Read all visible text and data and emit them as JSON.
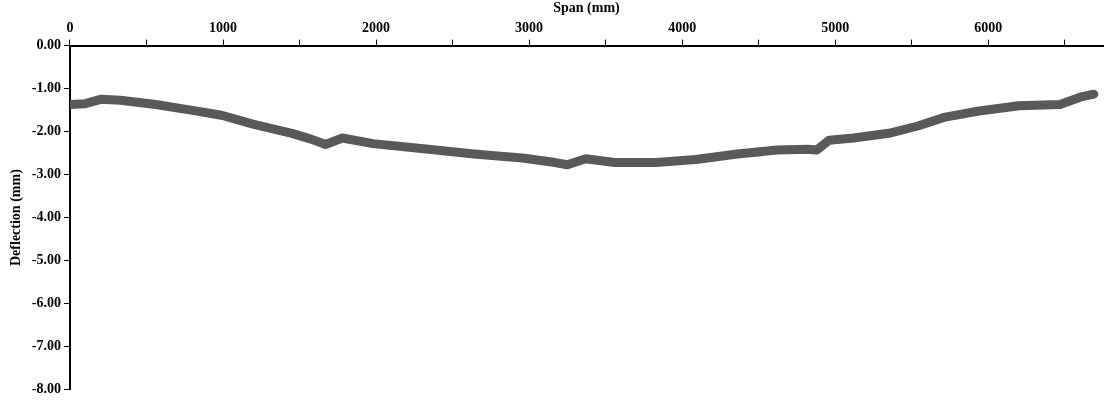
{
  "chart_data": {
    "type": "line",
    "xlabel": "Span (mm)",
    "ylabel": "Deflection (mm)",
    "grid": false,
    "legend": false,
    "marker": "none",
    "line_style": "solid",
    "xlim": [
      0,
      6750
    ],
    "xticks": [
      0,
      {
        "value": 500,
        "label": null
      },
      1000,
      {
        "value": 1500,
        "label": null
      },
      2000,
      {
        "value": 2500,
        "label": null
      },
      3000,
      {
        "value": 3500,
        "label": null
      },
      4000,
      {
        "value": 4500,
        "label": null
      },
      5000,
      {
        "value": 5500,
        "label": null
      },
      6000,
      {
        "value": 6500,
        "label": null
      }
    ],
    "ylim": [
      -8,
      0
    ],
    "yticks": [
      {
        "value": 0,
        "label": "0.00"
      },
      {
        "value": -1,
        "label": "-1.00"
      },
      {
        "value": -2,
        "label": "-2.00"
      },
      {
        "value": -3,
        "label": "-3.00"
      },
      {
        "value": -4,
        "label": "-4.00"
      },
      {
        "value": -5,
        "label": "-5.00"
      },
      {
        "value": -6,
        "label": "-6.00"
      },
      {
        "value": -7,
        "label": "-7.00"
      },
      {
        "value": -8,
        "label": "-8.00"
      }
    ],
    "x": [
      0,
      100,
      200,
      330,
      560,
      790,
      990,
      1190,
      1450,
      1580,
      1670,
      1780,
      1980,
      2310,
      2640,
      2970,
      3170,
      3250,
      3370,
      3560,
      3830,
      4090,
      4360,
      4620,
      4820,
      4880,
      4960,
      5120,
      5350,
      5540,
      5710,
      5940,
      6200,
      6470,
      6600,
      6690
    ],
    "series": [
      {
        "color": "#595959",
        "values": [
          -1.37,
          -1.35,
          -1.25,
          -1.27,
          -1.37,
          -1.5,
          -1.62,
          -1.82,
          -2.04,
          -2.18,
          -2.3,
          -2.15,
          -2.28,
          -2.4,
          -2.52,
          -2.62,
          -2.72,
          -2.77,
          -2.63,
          -2.72,
          -2.72,
          -2.65,
          -2.52,
          -2.43,
          -2.41,
          -2.43,
          -2.2,
          -2.15,
          -2.04,
          -1.87,
          -1.67,
          -1.52,
          -1.4,
          -1.37,
          -1.2,
          -1.13
        ]
      }
    ]
  }
}
